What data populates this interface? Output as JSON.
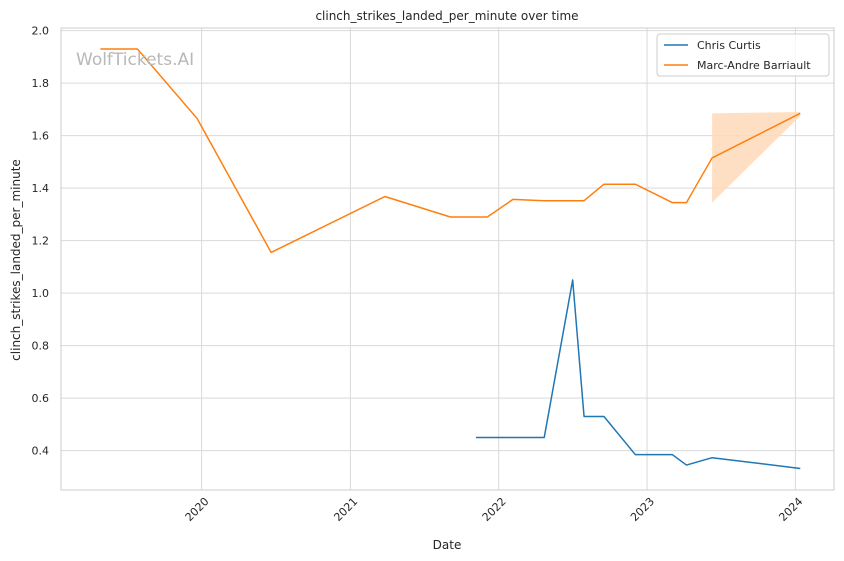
{
  "chart_data": {
    "type": "line",
    "title": "clinch_strikes_landed_per_minute over time",
    "xlabel": "Date",
    "ylabel": "clinch_strikes_landed_per_minute",
    "xlim": [
      "2019-01-20",
      "2024-04-05"
    ],
    "ylim": [
      0.25,
      2.01
    ],
    "x_ticks": [
      "2020",
      "2021",
      "2022",
      "2023",
      "2024"
    ],
    "y_ticks": [
      "0.4",
      "0.6",
      "0.8",
      "1.0",
      "1.2",
      "1.4",
      "1.6",
      "1.8",
      "2.0"
    ],
    "grid": true,
    "legend_position": "top-right",
    "watermark": "WolfTickets.AI",
    "series": [
      {
        "name": "Chris Curtis",
        "color": "#1f77b4",
        "points": [
          {
            "x": "2021-11-06",
            "y": 0.45
          },
          {
            "x": "2022-04-23",
            "y": 0.45
          },
          {
            "x": "2022-07-02",
            "y": 1.05
          },
          {
            "x": "2022-07-30",
            "y": 0.53
          },
          {
            "x": "2022-09-17",
            "y": 0.53
          },
          {
            "x": "2022-12-03",
            "y": 0.385
          },
          {
            "x": "2023-03-04",
            "y": 0.385
          },
          {
            "x": "2023-04-08",
            "y": 0.345
          },
          {
            "x": "2023-06-10",
            "y": 0.373
          },
          {
            "x": "2024-01-13",
            "y": 0.332
          }
        ]
      },
      {
        "name": "Marc-Andre Barriault",
        "color": "#ff7f0e",
        "band_color": "#ffd9b8",
        "points": [
          {
            "x": "2019-04-27",
            "y": 1.93
          },
          {
            "x": "2019-07-27",
            "y": 1.93
          },
          {
            "x": "2019-12-21",
            "y": 1.665
          },
          {
            "x": "2020-06-20",
            "y": 1.155
          },
          {
            "x": "2021-03-27",
            "y": 1.368
          },
          {
            "x": "2021-09-04",
            "y": 1.29
          },
          {
            "x": "2021-12-04",
            "y": 1.29
          },
          {
            "x": "2022-02-05",
            "y": 1.357
          },
          {
            "x": "2022-04-23",
            "y": 1.352
          },
          {
            "x": "2022-07-30",
            "y": 1.352
          },
          {
            "x": "2022-09-17",
            "y": 1.415
          },
          {
            "x": "2022-12-03",
            "y": 1.415
          },
          {
            "x": "2023-03-04",
            "y": 1.345
          },
          {
            "x": "2023-04-08",
            "y": 1.345
          },
          {
            "x": "2023-06-10",
            "y": 1.515
          },
          {
            "x": "2024-01-13",
            "y": 1.685
          }
        ],
        "band": [
          {
            "x": "2023-06-10",
            "low": 1.345,
            "high": 1.685
          },
          {
            "x": "2024-01-13",
            "low": 1.675,
            "high": 1.69
          }
        ]
      }
    ]
  }
}
